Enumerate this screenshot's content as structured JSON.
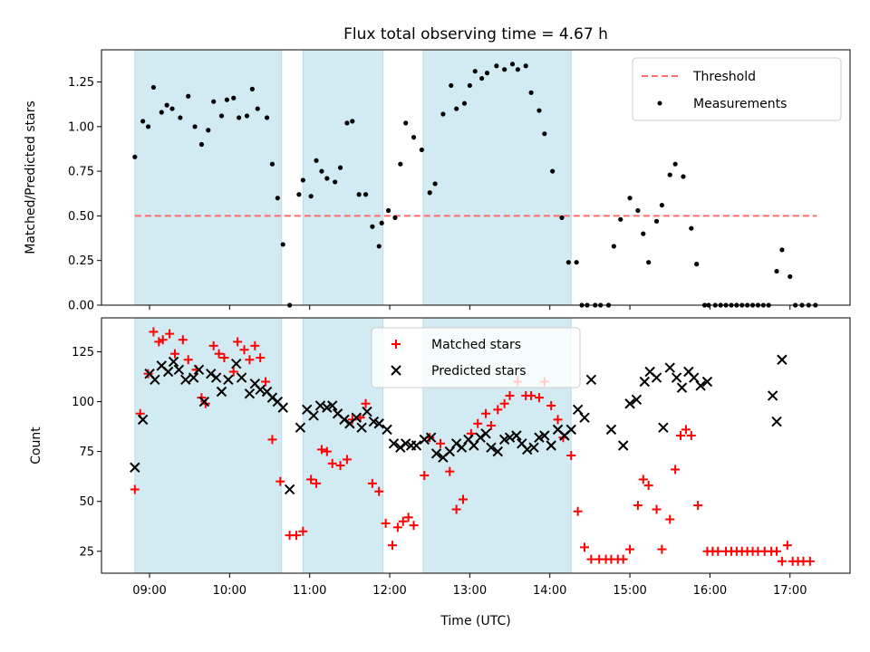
{
  "colors": {
    "shade": "#add8e6",
    "threshold": "#ff6b6b",
    "matched": "#ff0000",
    "predicted": "#000000",
    "measure": "#000000"
  },
  "chart_data": [
    {
      "type": "scatter",
      "title": "Flux total observing time = 4.67 h",
      "xlabel": "",
      "ylabel": "Matched/Predicted stars",
      "xlim": [
        "08:24",
        "17:45"
      ],
      "ylim": [
        0,
        1.43
      ],
      "yticks": [
        "0.00",
        "0.25",
        "0.50",
        "0.75",
        "1.00",
        "1.25"
      ],
      "legend": {
        "placement": "top-right",
        "entries": [
          "Threshold",
          "Measurements"
        ]
      },
      "shaded_intervals": [
        [
          "08:49",
          "10:39"
        ],
        [
          "10:55",
          "11:55"
        ],
        [
          "12:25",
          "14:16"
        ]
      ],
      "threshold": {
        "name": "Threshold",
        "y": 0.5,
        "x": [
          "08:49",
          "17:20"
        ]
      },
      "series": [
        {
          "name": "Measurements",
          "x": [
            "08:49",
            "08:55",
            "08:59",
            "09:03",
            "09:09",
            "09:13",
            "09:17",
            "09:23",
            "09:29",
            "09:34",
            "09:39",
            "09:44",
            "09:48",
            "09:54",
            "09:58",
            "10:03",
            "10:07",
            "10:13",
            "10:17",
            "10:21",
            "10:28",
            "10:32",
            "10:36",
            "10:40",
            "10:45",
            "10:52",
            "10:55",
            "11:01",
            "11:05",
            "11:09",
            "11:13",
            "11:19",
            "11:23",
            "11:28",
            "11:32",
            "11:37",
            "11:42",
            "11:47",
            "11:52",
            "11:54",
            "11:59",
            "12:04",
            "12:08",
            "12:12",
            "12:18",
            "12:24",
            "12:30",
            "12:34",
            "12:40",
            "12:46",
            "12:50",
            "12:56",
            "13:00",
            "13:04",
            "13:09",
            "13:13",
            "13:20",
            "13:26",
            "13:32",
            "13:36",
            "13:42",
            "13:46",
            "13:52",
            "13:56",
            "14:02",
            "14:09",
            "14:14",
            "14:20",
            "14:24",
            "14:28",
            "14:34",
            "14:38",
            "14:44",
            "14:48",
            "14:53",
            "15:00",
            "15:06",
            "15:10",
            "15:14",
            "15:20",
            "15:24",
            "15:30",
            "15:34",
            "15:40",
            "15:46",
            "15:50",
            "15:56",
            "15:59",
            "16:04",
            "16:08",
            "16:12",
            "16:16",
            "16:20",
            "16:24",
            "16:28",
            "16:32",
            "16:36",
            "16:40",
            "16:44",
            "16:50",
            "16:54",
            "17:00",
            "17:04",
            "17:09",
            "17:14",
            "17:19"
          ],
          "y": [
            0.83,
            1.03,
            1.0,
            1.22,
            1.08,
            1.12,
            1.1,
            1.05,
            1.17,
            1.0,
            0.9,
            0.98,
            1.14,
            1.06,
            1.15,
            1.16,
            1.05,
            1.06,
            1.21,
            1.1,
            1.05,
            0.79,
            0.6,
            0.34,
            0.0,
            0.62,
            0.7,
            0.61,
            0.81,
            0.75,
            0.71,
            0.69,
            0.77,
            1.02,
            1.03,
            0.62,
            0.62,
            0.44,
            0.33,
            0.46,
            0.53,
            0.49,
            0.79,
            1.02,
            0.94,
            0.87,
            0.63,
            0.68,
            1.07,
            1.23,
            1.1,
            1.13,
            1.23,
            1.31,
            1.27,
            1.3,
            1.34,
            1.32,
            1.35,
            1.32,
            1.34,
            1.19,
            1.09,
            0.96,
            0.75,
            0.49,
            0.24,
            0.24,
            0.0,
            0.0,
            0.0,
            0.0,
            0.0,
            0.33,
            0.48,
            0.6,
            0.53,
            0.4,
            0.24,
            0.47,
            0.56,
            0.73,
            0.79,
            0.72,
            0.43,
            0.23,
            0.0,
            0.0,
            0.0,
            0.0,
            0.0,
            0.0,
            0.0,
            0.0,
            0.0,
            0.0,
            0.0,
            0.0,
            0.0,
            0.19,
            0.31,
            0.16,
            0.0,
            0.0,
            0.0,
            0.0
          ]
        }
      ]
    },
    {
      "type": "scatter",
      "title": "",
      "xlabel": "Time (UTC)",
      "ylabel": "Count",
      "xlim": [
        "08:24",
        "17:45"
      ],
      "ylim": [
        14,
        142
      ],
      "yticks": [
        "25",
        "50",
        "75",
        "100",
        "125"
      ],
      "xticks": [
        "09:00",
        "10:00",
        "11:00",
        "12:00",
        "13:00",
        "14:00",
        "15:00",
        "16:00",
        "17:00"
      ],
      "legend": {
        "placement": "top-center",
        "entries": [
          "Matched stars",
          "Predicted stars"
        ]
      },
      "shaded_intervals": [
        [
          "08:49",
          "10:39"
        ],
        [
          "10:55",
          "11:55"
        ],
        [
          "12:25",
          "14:16"
        ]
      ],
      "series": [
        {
          "name": "Matched stars",
          "marker": "plus",
          "x": [
            "08:49",
            "08:53",
            "08:59",
            "09:03",
            "09:07",
            "09:10",
            "09:15",
            "09:19",
            "09:25",
            "09:29",
            "09:35",
            "09:39",
            "09:42",
            "09:48",
            "09:52",
            "09:56",
            "10:03",
            "10:06",
            "10:11",
            "10:15",
            "10:19",
            "10:23",
            "10:27",
            "10:32",
            "10:38",
            "10:45",
            "10:50",
            "10:55",
            "11:01",
            "11:05",
            "11:09",
            "11:13",
            "11:17",
            "11:23",
            "11:28",
            "11:32",
            "11:38",
            "11:42",
            "11:47",
            "11:52",
            "11:57",
            "12:02",
            "12:06",
            "12:10",
            "12:14",
            "12:18",
            "12:26",
            "12:30",
            "12:38",
            "12:45",
            "12:50",
            "12:55",
            "13:01",
            "13:06",
            "13:12",
            "13:16",
            "13:21",
            "13:26",
            "13:30",
            "13:36",
            "13:42",
            "13:46",
            "13:52",
            "13:56",
            "14:01",
            "14:06",
            "14:10",
            "14:16",
            "14:21",
            "14:26",
            "14:31",
            "14:37",
            "14:42",
            "14:46",
            "14:51",
            "14:55",
            "15:00",
            "15:06",
            "15:10",
            "15:14",
            "15:20",
            "15:24",
            "15:30",
            "15:34",
            "15:38",
            "15:42",
            "15:46",
            "15:51",
            "15:58",
            "16:02",
            "16:06",
            "16:12",
            "16:16",
            "16:20",
            "16:24",
            "16:28",
            "16:32",
            "16:36",
            "16:41",
            "16:46",
            "16:50",
            "16:54",
            "16:58",
            "17:02",
            "17:06",
            "17:10",
            "17:15"
          ],
          "y": [
            56,
            94,
            114,
            135,
            130,
            131,
            134,
            124,
            131,
            121,
            116,
            102,
            99,
            128,
            124,
            122,
            115,
            130,
            126,
            121,
            128,
            122,
            110,
            81,
            60,
            33,
            33,
            35,
            61,
            59,
            76,
            75,
            69,
            68,
            71,
            91,
            92,
            99,
            59,
            55,
            39,
            28,
            37,
            40,
            42,
            38,
            63,
            82,
            79,
            65,
            46,
            51,
            84,
            89,
            94,
            88,
            96,
            99,
            103,
            110,
            103,
            103,
            102,
            110,
            98,
            91,
            82,
            73,
            45,
            27,
            21,
            21,
            21,
            21,
            21,
            21,
            26,
            48,
            61,
            58,
            46,
            26,
            41,
            66,
            83,
            86,
            83,
            48,
            25,
            25,
            25,
            25,
            25,
            25,
            25,
            25,
            25,
            25,
            25,
            25,
            25,
            20,
            28,
            20,
            20,
            20,
            20
          ]
        },
        {
          "name": "Predicted stars",
          "marker": "x",
          "x": [
            "08:49",
            "08:55",
            "09:00",
            "09:04",
            "09:09",
            "09:14",
            "09:18",
            "09:22",
            "09:27",
            "09:33",
            "09:37",
            "09:41",
            "09:46",
            "09:50",
            "09:54",
            "09:59",
            "10:05",
            "10:09",
            "10:15",
            "10:19",
            "10:23",
            "10:28",
            "10:32",
            "10:36",
            "10:40",
            "10:45",
            "10:53",
            "10:58",
            "11:03",
            "11:08",
            "11:13",
            "11:17",
            "11:21",
            "11:26",
            "11:30",
            "11:35",
            "11:39",
            "11:43",
            "11:48",
            "11:52",
            "11:58",
            "12:03",
            "12:08",
            "12:12",
            "12:16",
            "12:20",
            "12:26",
            "12:31",
            "12:35",
            "12:40",
            "12:45",
            "12:50",
            "12:54",
            "12:59",
            "13:03",
            "13:08",
            "13:12",
            "13:16",
            "13:21",
            "13:26",
            "13:30",
            "13:35",
            "13:39",
            "13:43",
            "13:48",
            "13:52",
            "13:56",
            "14:01",
            "14:06",
            "14:11",
            "14:16",
            "14:21",
            "14:26",
            "14:31",
            "14:46",
            "14:55",
            "15:00",
            "15:05",
            "15:11",
            "15:15",
            "15:20",
            "15:25",
            "15:30",
            "15:35",
            "15:39",
            "15:44",
            "15:48",
            "15:53",
            "15:58",
            "16:47",
            "16:50",
            "16:54"
          ],
          "y": [
            67,
            91,
            114,
            111,
            118,
            115,
            120,
            116,
            111,
            112,
            116,
            100,
            114,
            112,
            105,
            111,
            119,
            112,
            104,
            109,
            106,
            105,
            102,
            100,
            97,
            56,
            87,
            96,
            93,
            98,
            97,
            98,
            94,
            91,
            89,
            92,
            87,
            95,
            90,
            89,
            86,
            79,
            77,
            79,
            78,
            78,
            81,
            82,
            74,
            72,
            75,
            79,
            77,
            81,
            78,
            82,
            84,
            77,
            75,
            81,
            82,
            83,
            79,
            76,
            77,
            82,
            83,
            78,
            86,
            83,
            86,
            96,
            92,
            111,
            86,
            78,
            99,
            101,
            110,
            115,
            112,
            87,
            117,
            112,
            107,
            115,
            112,
            108,
            110,
            103,
            90,
            121
          ]
        }
      ]
    }
  ]
}
